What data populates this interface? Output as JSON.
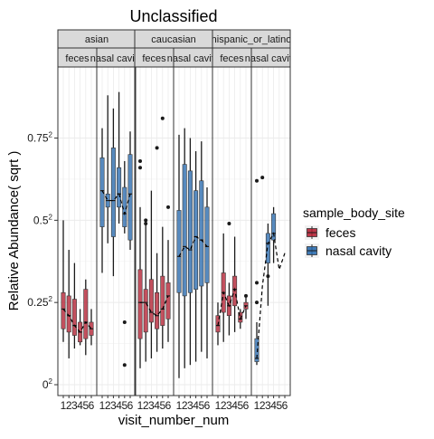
{
  "chart_data": {
    "type": "box",
    "title": "Unclassified",
    "xlabel": "visit_number_num",
    "ylabel": "Relative Abundance( sqrt )",
    "y_scale": "sqrt",
    "y_ticks": [
      {
        "value": 0,
        "base": "0",
        "exp": "2"
      },
      {
        "value": 0.0625,
        "base": "0.25",
        "exp": "2"
      },
      {
        "value": 0.25,
        "base": "0.5",
        "exp": "2"
      },
      {
        "value": 0.5625,
        "base": "0.75",
        "exp": "2"
      }
    ],
    "x_ticks": [
      "1",
      "2",
      "3",
      "4",
      "5",
      "6"
    ],
    "facet_rows": [
      "asian",
      "caucasian",
      "hispanic_or_latino"
    ],
    "facet_cols": [
      "feces",
      "nasal cavity"
    ],
    "facet_col_labels": [
      "feces",
      "nasal cavity"
    ],
    "legend": {
      "title": "sample_body_site",
      "position": "right",
      "items": [
        {
          "label": "feces",
          "color": "#b2182b"
        },
        {
          "label": "nasal cavity",
          "color": "#2166ac"
        }
      ]
    },
    "series": [
      {
        "group": "asian",
        "site": "feces",
        "boxes": [
          {
            "x": 1,
            "min": 0.0169,
            "q1": 0.0289,
            "median": 0.0529,
            "q3": 0.0784,
            "max": 0.25
          },
          {
            "x": 2,
            "min": 0.0064,
            "q1": 0.0256,
            "median": 0.0441,
            "q3": 0.0729,
            "max": 0.1681
          },
          {
            "x": 3,
            "min": 0.0121,
            "q1": 0.0225,
            "median": 0.0324,
            "q3": 0.0676,
            "max": 0.1369
          },
          {
            "x": 4,
            "min": 0.0144,
            "q1": 0.0169,
            "median": 0.0256,
            "q3": 0.0361,
            "max": 0.0529
          },
          {
            "x": 5,
            "min": 0.0081,
            "q1": 0.0196,
            "median": 0.0361,
            "q3": 0.0841,
            "max": 0.1024
          },
          {
            "x": 6,
            "min": 0.0144,
            "q1": 0.0225,
            "median": 0.0289,
            "q3": 0.0361,
            "max": 0.0529
          }
        ],
        "outliers": []
      },
      {
        "group": "asian",
        "site": "nasal cavity",
        "boxes": [
          {
            "x": 1,
            "min": 0.1156,
            "q1": 0.2304,
            "median": 0.3481,
            "q3": 0.4761,
            "max": 0.6084
          },
          {
            "x": 2,
            "min": 0.1849,
            "q1": 0.2916,
            "median": 0.3136,
            "q3": 0.3364,
            "max": 0.7744
          },
          {
            "x": 3,
            "min": 0.1089,
            "q1": 0.2025,
            "median": 0.3136,
            "q3": 0.5184,
            "max": 0.7056
          },
          {
            "x": 4,
            "min": 0.2401,
            "q1": 0.2916,
            "median": 0.3364,
            "q3": 0.4356,
            "max": 0.7921
          },
          {
            "x": 5,
            "min": 0.2116,
            "q1": 0.2304,
            "median": 0.2704,
            "q3": 0.36,
            "max": 0.4624
          },
          {
            "x": 6,
            "min": 0.1681,
            "q1": 0.1936,
            "median": 0.3364,
            "q3": 0.49,
            "max": 0.5929
          }
        ],
        "outliers": [
          {
            "x": 5,
            "y": 0.0361
          },
          {
            "x": 5,
            "y": 0.0036
          }
        ]
      },
      {
        "group": "caucasian",
        "site": "feces",
        "boxes": [
          {
            "x": 1,
            "min": 0.0025,
            "q1": 0.0196,
            "median": 0.0625,
            "q3": 0.1225,
            "max": 0.2916
          },
          {
            "x": 2,
            "min": 0.0049,
            "q1": 0.0256,
            "median": 0.0625,
            "q3": 0.0841,
            "max": 0.2401
          },
          {
            "x": 3,
            "min": 0.0064,
            "q1": 0.0361,
            "median": 0.0484,
            "q3": 0.1024,
            "max": 0.3481
          },
          {
            "x": 4,
            "min": 0.01,
            "q1": 0.0289,
            "median": 0.0441,
            "q3": 0.0784,
            "max": 0.16
          },
          {
            "x": 5,
            "min": 0.0121,
            "q1": 0.0324,
            "median": 0.0529,
            "q3": 0.1089,
            "max": 0.2304
          },
          {
            "x": 6,
            "min": 0.0169,
            "q1": 0.04,
            "median": 0.0729,
            "q3": 0.0961,
            "max": 0.1936
          }
        ],
        "outliers": [
          {
            "x": 1,
            "y": 0.4624
          },
          {
            "x": 1,
            "y": 0.4356
          },
          {
            "x": 2,
            "y": 0.25
          },
          {
            "x": 2,
            "y": 0.2401
          },
          {
            "x": 4,
            "y": 0.5184
          },
          {
            "x": 5,
            "y": 0.6561
          },
          {
            "x": 6,
            "y": 0.2916
          }
        ]
      },
      {
        "group": "caucasian",
        "site": "nasal cavity",
        "boxes": [
          {
            "x": 1,
            "min": 0.0004,
            "q1": 0.0784,
            "median": 0.1521,
            "q3": 0.2809,
            "max": 0.5776
          },
          {
            "x": 2,
            "min": 0.0025,
            "q1": 0.0729,
            "median": 0.1764,
            "q3": 0.4489,
            "max": 0.6084
          },
          {
            "x": 3,
            "min": 0.0036,
            "q1": 0.0784,
            "median": 0.1681,
            "q3": 0.4225,
            "max": 0.5625
          },
          {
            "x": 4,
            "min": 0.0049,
            "q1": 0.0841,
            "median": 0.2025,
            "q3": 0.3481,
            "max": 0.5041
          },
          {
            "x": 5,
            "min": 0.01,
            "q1": 0.09,
            "median": 0.1936,
            "q3": 0.3844,
            "max": 0.5476
          },
          {
            "x": 6,
            "min": 0.0064,
            "q1": 0.0961,
            "median": 0.1764,
            "q3": 0.2916,
            "max": 0.36
          }
        ],
        "outliers": []
      },
      {
        "group": "hispanic_or_latino",
        "site": "feces",
        "boxes": [
          {
            "x": 1,
            "min": 0.0144,
            "q1": 0.0256,
            "median": 0.0324,
            "q3": 0.0441,
            "max": 0.0625
          },
          {
            "x": 2,
            "min": 0.0169,
            "q1": 0.0484,
            "median": 0.0784,
            "q3": 0.1156,
            "max": 0.2116
          },
          {
            "x": 3,
            "min": 0.0225,
            "q1": 0.0441,
            "median": 0.0576,
            "q3": 0.0729,
            "max": 0.0961
          },
          {
            "x": 4,
            "min": 0.0256,
            "q1": 0.0576,
            "median": 0.0841,
            "q3": 0.1089,
            "max": 0.2025
          },
          {
            "x": 5,
            "min": 0.0289,
            "q1": 0.0361,
            "median": 0.04,
            "q3": 0.0484,
            "max": 0.0529
          },
          {
            "x": 6,
            "min": 0.04,
            "q1": 0.0529,
            "median": 0.0576,
            "q3": 0.0625,
            "max": 0.0729
          }
        ],
        "outliers": [
          {
            "x": 3,
            "y": 0.2401
          },
          {
            "x": 6,
            "y": 0.0729
          }
        ]
      },
      {
        "group": "hispanic_or_latino",
        "site": "nasal cavity",
        "boxes": [
          {
            "x": 1,
            "min": 0.0036,
            "q1": 0.0049,
            "median": 0.0064,
            "q3": 0.0196,
            "max": 0.0361
          },
          {
            "x": 2,
            "min": null,
            "q1": null,
            "median": 0.09,
            "q3": null,
            "max": null
          },
          {
            "x": 3,
            "min": 0.0576,
            "q1": 0.1369,
            "median": 0.1849,
            "q3": 0.2116,
            "max": 0.2401
          },
          {
            "x": 4,
            "min": 0.1369,
            "q1": 0.1936,
            "median": 0.2116,
            "q3": 0.2704,
            "max": 0.2916
          },
          {
            "x": 5,
            "min": null,
            "q1": null,
            "median": 0.1225,
            "q3": null,
            "max": null
          },
          {
            "x": 6,
            "min": null,
            "q1": null,
            "median": 0.16,
            "q3": null,
            "max": null
          }
        ],
        "outliers": [
          {
            "x": 1,
            "y": 0.3844
          },
          {
            "x": 1,
            "y": 0.0961
          },
          {
            "x": 1,
            "y": 0.0625
          },
          {
            "x": 2,
            "y": 0.3969
          },
          {
            "x": 3,
            "y": 0.1089
          }
        ]
      }
    ]
  }
}
